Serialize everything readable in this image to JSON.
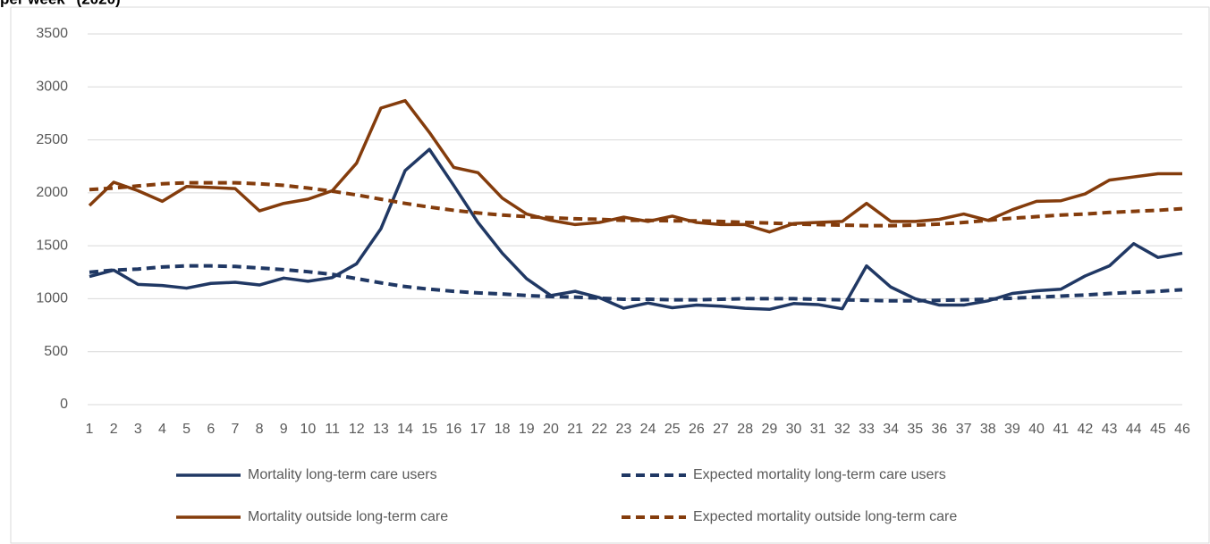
{
  "chart_data": {
    "type": "line",
    "title": "per week\" (2020)",
    "categories": [
      1,
      2,
      3,
      4,
      5,
      6,
      7,
      8,
      9,
      10,
      11,
      12,
      13,
      14,
      15,
      16,
      17,
      18,
      19,
      20,
      21,
      22,
      23,
      24,
      25,
      26,
      27,
      28,
      29,
      30,
      31,
      32,
      33,
      34,
      35,
      36,
      37,
      38,
      39,
      40,
      41,
      42,
      43,
      44,
      45,
      46
    ],
    "ylim": [
      0,
      3500
    ],
    "yticks": [
      0,
      500,
      1000,
      1500,
      2000,
      2500,
      3000,
      3500
    ],
    "grid": true,
    "legend": "bottom",
    "series": [
      {
        "name": "Mortality long-term care users",
        "color": "#203864",
        "dash": false,
        "values": [
          1210,
          1270,
          1135,
          1125,
          1100,
          1145,
          1155,
          1130,
          1195,
          1165,
          1200,
          1330,
          1660,
          2210,
          2410,
          2070,
          1720,
          1430,
          1190,
          1030,
          1070,
          1010,
          910,
          960,
          915,
          940,
          930,
          910,
          900,
          955,
          945,
          905,
          1310,
          1110,
          1000,
          940,
          940,
          980,
          1050,
          1075,
          1090,
          1215,
          1310,
          1520,
          1390,
          1430
        ]
      },
      {
        "name": "Expected mortality long-term care users",
        "color": "#203864",
        "dash": true,
        "values": [
          1250,
          1270,
          1280,
          1300,
          1310,
          1310,
          1305,
          1290,
          1275,
          1255,
          1230,
          1190,
          1150,
          1115,
          1090,
          1070,
          1055,
          1045,
          1030,
          1020,
          1015,
          1005,
          995,
          995,
          990,
          990,
          995,
          1000,
          1000,
          1000,
          995,
          990,
          985,
          980,
          980,
          985,
          990,
          995,
          1005,
          1015,
          1025,
          1035,
          1050,
          1060,
          1070,
          1085
        ]
      },
      {
        "name": "Mortality outside long-term care",
        "color": "#843c0c",
        "dash": false,
        "values": [
          1880,
          2100,
          2020,
          1920,
          2060,
          2050,
          2040,
          1830,
          1900,
          1940,
          2020,
          2280,
          2800,
          2870,
          2570,
          2240,
          2190,
          1950,
          1800,
          1740,
          1700,
          1720,
          1770,
          1730,
          1780,
          1720,
          1700,
          1700,
          1630,
          1710,
          1720,
          1730,
          1900,
          1730,
          1730,
          1750,
          1800,
          1740,
          1840,
          1920,
          1925,
          1990,
          2120,
          2150,
          2180,
          2180
        ]
      },
      {
        "name": "Expected mortality outside long-term care",
        "color": "#843c0c",
        "dash": true,
        "values": [
          2030,
          2045,
          2065,
          2085,
          2095,
          2095,
          2095,
          2085,
          2070,
          2045,
          2015,
          1980,
          1940,
          1900,
          1865,
          1835,
          1810,
          1790,
          1775,
          1765,
          1755,
          1750,
          1740,
          1740,
          1735,
          1735,
          1730,
          1720,
          1715,
          1705,
          1700,
          1695,
          1690,
          1690,
          1695,
          1705,
          1720,
          1740,
          1760,
          1775,
          1790,
          1800,
          1815,
          1825,
          1835,
          1850
        ]
      }
    ]
  }
}
